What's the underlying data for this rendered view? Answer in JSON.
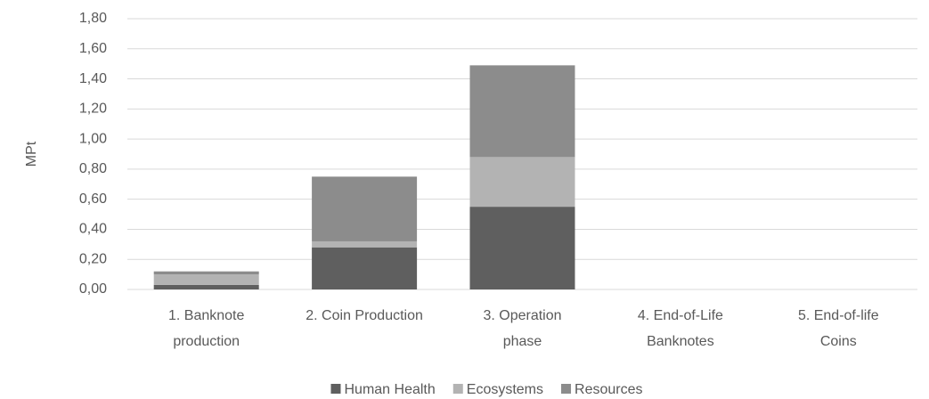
{
  "chart_data": {
    "type": "stacked_bar",
    "y_label": "MPt",
    "categories": [
      [
        "1. Banknote",
        "production"
      ],
      [
        "2. Coin Production"
      ],
      [
        "3. Operation",
        "phase"
      ],
      [
        "4. End-of-Life",
        "Banknotes"
      ],
      [
        "5. End-of-life",
        "Coins"
      ]
    ],
    "series": [
      {
        "name": "Human Health",
        "color": "#5f5f5f",
        "values": [
          0.03,
          0.28,
          0.55,
          0,
          0
        ]
      },
      {
        "name": "Ecosystems",
        "color": "#b3b3b3",
        "values": [
          0.07,
          0.04,
          0.33,
          0,
          0
        ]
      },
      {
        "name": "Resources",
        "color": "#8c8c8c",
        "values": [
          0.02,
          0.43,
          0.61,
          0,
          0
        ]
      }
    ],
    "ylim": [
      0,
      1.8
    ],
    "yticks": [
      {
        "value": 0,
        "label": "0,00"
      },
      {
        "value": 0.2,
        "label": "0,20"
      },
      {
        "value": 0.4,
        "label": "0,40"
      },
      {
        "value": 0.6,
        "label": "0,60"
      },
      {
        "value": 0.8,
        "label": "0,80"
      },
      {
        "value": 1.0,
        "label": "1,00"
      },
      {
        "value": 1.2,
        "label": "1,20"
      },
      {
        "value": 1.4,
        "label": "1,40"
      },
      {
        "value": 1.6,
        "label": "1,60"
      },
      {
        "value": 1.8,
        "label": "1,80"
      }
    ],
    "grid": true,
    "legend": "bottom"
  }
}
